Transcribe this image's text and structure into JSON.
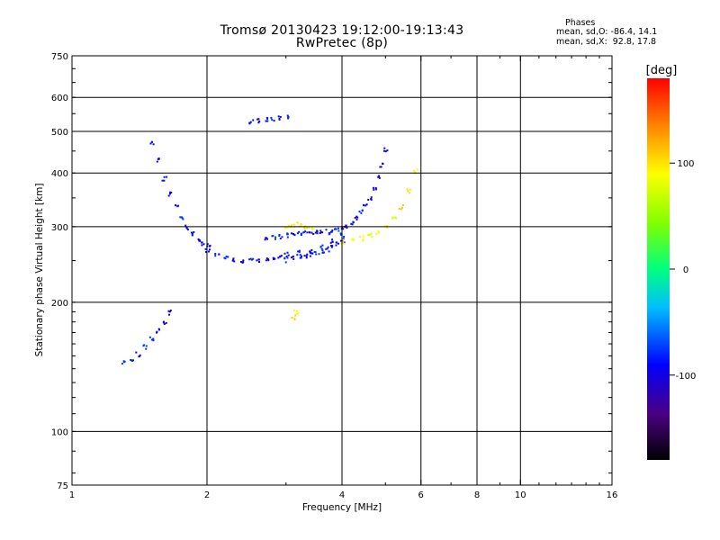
{
  "header": {
    "line1": "Tromsø 20130423 19:12:00-19:13:43",
    "line2": "RwPretec (8p)"
  },
  "stats": {
    "label": "Phases",
    "o_mode": "mean, sd,O: -86.4, 14.1",
    "x_mode": "mean, sd,X:  92.8, 17.8"
  },
  "colorbar": {
    "unit": "[deg]",
    "ticks": [
      {
        "label": "100",
        "value": 100
      },
      {
        "label": "0",
        "value": 0
      },
      {
        "label": "-100",
        "value": -100
      }
    ],
    "range": [
      -180,
      180
    ]
  },
  "chart_data": {
    "type": "scatter",
    "title": "Tromsø 20130423 19:12:00-19:13:43",
    "subtitle": "RwPretec (8p)",
    "xlabel": "Frequency [MHz]",
    "ylabel": "Stationary phase Virtual Height [km]",
    "x_scale": "log",
    "y_scale": "log",
    "xlim": [
      1,
      16
    ],
    "ylim": [
      75,
      750
    ],
    "xticks": [
      1,
      2,
      4,
      6,
      8,
      10,
      16
    ],
    "xtick_labels": [
      "1",
      "2",
      "4",
      "6",
      "8",
      "10",
      "16"
    ],
    "yticks": [
      75,
      100,
      200,
      300,
      400,
      500,
      600,
      750
    ],
    "ytick_labels": [
      "75",
      "100",
      "200",
      "300",
      "400",
      "500",
      "600",
      "750"
    ],
    "grid": true,
    "series": [
      {
        "mode": "O",
        "mean_phase": -86.4,
        "sd_phase": 14.1,
        "traces": [
          {
            "x": [
              1.5,
              1.55,
              1.6,
              1.65,
              1.7,
              1.75,
              1.8,
              1.85,
              1.9,
              1.95,
              2.0
            ],
            "y": [
              470,
              430,
              390,
              360,
              335,
              315,
              300,
              290,
              282,
              276,
              272
            ]
          },
          {
            "x": [
              2.0,
              2.1,
              2.2,
              2.3,
              2.4,
              2.5,
              2.6,
              2.7,
              2.8,
              2.9,
              3.0,
              3.2,
              3.4,
              3.6,
              3.8,
              4.0
            ],
            "y": [
              265,
              258,
              254,
              252,
              251,
              251,
              252,
              254,
              256,
              258,
              260,
              262,
              265,
              270,
              278,
              288
            ]
          },
          {
            "x": [
              2.7,
              2.8,
              2.9,
              3.0,
              3.1,
              3.2,
              3.3,
              3.4,
              3.5,
              3.6,
              3.7,
              3.8,
              3.9,
              4.0,
              4.1,
              4.2,
              4.3,
              4.4,
              4.5,
              4.6,
              4.7,
              4.8,
              4.9,
              5.0
            ],
            "y": [
              282,
              284,
              286,
              288,
              290,
              290,
              291,
              292,
              292,
              292,
              293,
              294,
              296,
              298,
              302,
              308,
              316,
              326,
              338,
              352,
              370,
              392,
              420,
              455
            ]
          },
          {
            "x": [
              3.0,
              3.1,
              3.2,
              3.3,
              3.4,
              3.5,
              3.6,
              3.7,
              3.8,
              3.9,
              4.0
            ],
            "y": [
              252,
              254,
              256,
              258,
              260,
              262,
              264,
              267,
              270,
              274,
              280
            ]
          },
          {
            "x": [
              1.3,
              1.35,
              1.4,
              1.45,
              1.5,
              1.55,
              1.6,
              1.65
            ],
            "y": [
              145,
              148,
              152,
              158,
              165,
              172,
              180,
              190
            ]
          },
          {
            "x": [
              2.5,
              2.6,
              2.7,
              2.8,
              2.9,
              3.0
            ],
            "y": [
              530,
              532,
              535,
              538,
              540,
              542
            ]
          }
        ]
      },
      {
        "mode": "X",
        "mean_phase": 92.8,
        "sd_phase": 17.8,
        "traces": [
          {
            "x": [
              4.0,
              4.2,
              4.4,
              4.6,
              4.8,
              5.0,
              5.2,
              5.4,
              5.6,
              5.8
            ],
            "y": [
              278,
              280,
              283,
              287,
              292,
              300,
              315,
              335,
              365,
              405
            ]
          },
          {
            "x": [
              3.0,
              3.1,
              3.2,
              3.3,
              3.4
            ],
            "y": [
              300,
              302,
              305,
              300,
              298
            ]
          },
          {
            "x": [
              3.1,
              3.15
            ],
            "y": [
              185,
              190
            ]
          }
        ]
      }
    ]
  }
}
